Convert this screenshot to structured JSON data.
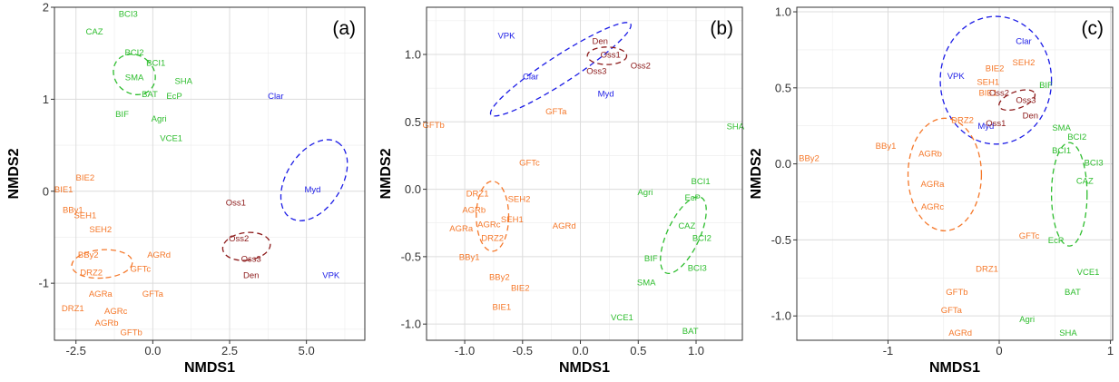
{
  "colors": {
    "orange": "#f5782a",
    "green": "#2ebd2e",
    "blue": "#1c1ce6",
    "darkred": "#8c1a1a",
    "grid": "#dcdcdc",
    "panel": "#ffffff"
  },
  "chart_data": [
    {
      "type": "scatter",
      "tag": "(a)",
      "xlabel": "NMDS1",
      "ylabel": "NMDS2",
      "xlim": [
        -3.2,
        6.9
      ],
      "ylim": [
        -1.62,
        2.0
      ],
      "xticks": [
        -2.5,
        0.0,
        2.5,
        5.0
      ],
      "xtick_labels": [
        "-2.5",
        "0.0",
        "2.5",
        "5.0"
      ],
      "yticks": [
        -1,
        0,
        1,
        2
      ],
      "ytick_labels": [
        "-1",
        "0",
        "1",
        "2"
      ],
      "grid": true,
      "points": [
        {
          "label": "BCI3",
          "x": -0.8,
          "y": 1.93,
          "color": "green"
        },
        {
          "label": "CAZ",
          "x": -1.9,
          "y": 1.74,
          "color": "green"
        },
        {
          "label": "BCI2",
          "x": -0.6,
          "y": 1.51,
          "color": "green"
        },
        {
          "label": "BCI1",
          "x": 0.1,
          "y": 1.4,
          "color": "green"
        },
        {
          "label": "SMA",
          "x": -0.6,
          "y": 1.24,
          "color": "green"
        },
        {
          "label": "SHA",
          "x": 1.0,
          "y": 1.2,
          "color": "green"
        },
        {
          "label": "BAT",
          "x": -0.1,
          "y": 1.06,
          "color": "green"
        },
        {
          "label": "EcP",
          "x": 0.7,
          "y": 1.04,
          "color": "green"
        },
        {
          "label": "BIF",
          "x": -1.0,
          "y": 0.84,
          "color": "green"
        },
        {
          "label": "Agri",
          "x": 0.2,
          "y": 0.79,
          "color": "green"
        },
        {
          "label": "VCE1",
          "x": 0.6,
          "y": 0.58,
          "color": "green"
        },
        {
          "label": "BIE2",
          "x": -2.2,
          "y": 0.15,
          "color": "orange"
        },
        {
          "label": "BIE1",
          "x": -2.9,
          "y": 0.02,
          "color": "orange"
        },
        {
          "label": "BBy1",
          "x": -2.6,
          "y": -0.2,
          "color": "orange"
        },
        {
          "label": "SEH1",
          "x": -2.2,
          "y": -0.26,
          "color": "orange"
        },
        {
          "label": "SEH2",
          "x": -1.7,
          "y": -0.41,
          "color": "orange"
        },
        {
          "label": "BBy2",
          "x": -2.1,
          "y": -0.69,
          "color": "orange"
        },
        {
          "label": "AGRd",
          "x": 0.2,
          "y": -0.69,
          "color": "orange"
        },
        {
          "label": "DRZ2",
          "x": -2.0,
          "y": -0.88,
          "color": "orange"
        },
        {
          "label": "GFTc",
          "x": -0.4,
          "y": -0.84,
          "color": "orange"
        },
        {
          "label": "AGRa",
          "x": -1.7,
          "y": -1.11,
          "color": "orange"
        },
        {
          "label": "GFTa",
          "x": 0.0,
          "y": -1.11,
          "color": "orange"
        },
        {
          "label": "DRZ1",
          "x": -2.6,
          "y": -1.27,
          "color": "orange"
        },
        {
          "label": "AGRc",
          "x": -1.2,
          "y": -1.3,
          "color": "orange"
        },
        {
          "label": "AGRb",
          "x": -1.5,
          "y": -1.43,
          "color": "orange"
        },
        {
          "label": "GFTb",
          "x": -0.7,
          "y": -1.53,
          "color": "orange"
        },
        {
          "label": "Clar",
          "x": 4.0,
          "y": 1.04,
          "color": "blue"
        },
        {
          "label": "Myd",
          "x": 5.2,
          "y": 0.02,
          "color": "blue"
        },
        {
          "label": "VPK",
          "x": 5.8,
          "y": -0.91,
          "color": "blue"
        },
        {
          "label": "Oss1",
          "x": 2.7,
          "y": -0.12,
          "color": "darkred"
        },
        {
          "label": "Oss2",
          "x": 2.8,
          "y": -0.51,
          "color": "darkred"
        },
        {
          "label": "Oss3",
          "x": 3.2,
          "y": -0.73,
          "color": "darkred"
        },
        {
          "label": "Den",
          "x": 3.2,
          "y": -0.91,
          "color": "darkred"
        }
      ],
      "ellipses": [
        {
          "color": "green",
          "cx": -0.6,
          "cy": 1.27,
          "rx": 0.62,
          "ry": 0.24,
          "angle": -52
        },
        {
          "color": "orange",
          "cx": -1.65,
          "cy": -0.79,
          "rx": 0.46,
          "ry": 0.33,
          "angle": 86
        },
        {
          "color": "blue",
          "cx": 5.25,
          "cy": 0.12,
          "rx": 1.45,
          "ry": 0.3,
          "angle": -58
        },
        {
          "color": "darkred",
          "cx": 3.05,
          "cy": -0.6,
          "rx": 0.45,
          "ry": 0.26,
          "angle": 83
        }
      ]
    },
    {
      "type": "scatter",
      "tag": "(b)",
      "xlabel": "NMDS1",
      "ylabel": "NMDS2",
      "xlim": [
        -1.33,
        1.4
      ],
      "ylim": [
        -1.12,
        1.35
      ],
      "xticks": [
        -1.0,
        -0.5,
        0.0,
        0.5,
        1.0
      ],
      "xtick_labels": [
        "-1.0",
        "-0.5",
        "0.0",
        "0.5",
        "1.0"
      ],
      "yticks": [
        -1.0,
        -0.5,
        0.0,
        0.5,
        1.0
      ],
      "ytick_labels": [
        "-1.0",
        "-0.5",
        "0.0",
        "0.5",
        "1.0"
      ],
      "grid": true,
      "points": [
        {
          "label": "VPK",
          "x": -0.64,
          "y": 1.14,
          "color": "blue"
        },
        {
          "label": "Clar",
          "x": -0.43,
          "y": 0.84,
          "color": "blue"
        },
        {
          "label": "Myd",
          "x": 0.22,
          "y": 0.71,
          "color": "blue"
        },
        {
          "label": "Den",
          "x": 0.17,
          "y": 1.1,
          "color": "darkred"
        },
        {
          "label": "Oss1",
          "x": 0.26,
          "y": 1.0,
          "color": "darkred"
        },
        {
          "label": "Oss3",
          "x": 0.14,
          "y": 0.88,
          "color": "darkred"
        },
        {
          "label": "Oss2",
          "x": 0.52,
          "y": 0.92,
          "color": "darkred"
        },
        {
          "label": "GFTa",
          "x": -0.21,
          "y": 0.58,
          "color": "orange"
        },
        {
          "label": "GFTb",
          "x": -1.27,
          "y": 0.48,
          "color": "orange"
        },
        {
          "label": "GFTc",
          "x": -0.44,
          "y": 0.2,
          "color": "orange"
        },
        {
          "label": "DRZ1",
          "x": -0.89,
          "y": -0.03,
          "color": "orange"
        },
        {
          "label": "SEH2",
          "x": -0.53,
          "y": -0.07,
          "color": "orange"
        },
        {
          "label": "AGRb",
          "x": -0.92,
          "y": -0.15,
          "color": "orange"
        },
        {
          "label": "SEH1",
          "x": -0.59,
          "y": -0.22,
          "color": "orange"
        },
        {
          "label": "AGRc",
          "x": -0.79,
          "y": -0.26,
          "color": "orange"
        },
        {
          "label": "AGRa",
          "x": -1.03,
          "y": -0.29,
          "color": "orange"
        },
        {
          "label": "AGRd",
          "x": -0.14,
          "y": -0.27,
          "color": "orange"
        },
        {
          "label": "DRZ2",
          "x": -0.76,
          "y": -0.36,
          "color": "orange"
        },
        {
          "label": "BBy1",
          "x": -0.96,
          "y": -0.5,
          "color": "orange"
        },
        {
          "label": "BBy2",
          "x": -0.7,
          "y": -0.65,
          "color": "orange"
        },
        {
          "label": "BIE2",
          "x": -0.52,
          "y": -0.73,
          "color": "orange"
        },
        {
          "label": "BIE1",
          "x": -0.68,
          "y": -0.87,
          "color": "orange"
        },
        {
          "label": "SHA",
          "x": 1.34,
          "y": 0.47,
          "color": "green"
        },
        {
          "label": "BCI1",
          "x": 1.04,
          "y": 0.06,
          "color": "green"
        },
        {
          "label": "Agri",
          "x": 0.56,
          "y": -0.02,
          "color": "green"
        },
        {
          "label": "EcP",
          "x": 0.97,
          "y": -0.06,
          "color": "green"
        },
        {
          "label": "CAZ",
          "x": 0.92,
          "y": -0.27,
          "color": "green"
        },
        {
          "label": "BCI2",
          "x": 1.05,
          "y": -0.36,
          "color": "green"
        },
        {
          "label": "BIF",
          "x": 0.61,
          "y": -0.51,
          "color": "green"
        },
        {
          "label": "BCI3",
          "x": 1.01,
          "y": -0.58,
          "color": "green"
        },
        {
          "label": "SMA",
          "x": 0.57,
          "y": -0.69,
          "color": "green"
        },
        {
          "label": "VCE1",
          "x": 0.36,
          "y": -0.95,
          "color": "green"
        },
        {
          "label": "BAT",
          "x": 0.95,
          "y": -1.05,
          "color": "green"
        }
      ],
      "ellipses": [
        {
          "color": "blue",
          "cx": -0.17,
          "cy": 0.89,
          "rx": 0.72,
          "ry": 0.1,
          "angle": -33
        },
        {
          "color": "darkred",
          "cx": 0.23,
          "cy": 0.99,
          "rx": 0.17,
          "ry": 0.065,
          "angle": 0
        },
        {
          "color": "orange",
          "cx": -0.76,
          "cy": -0.2,
          "rx": 0.14,
          "ry": 0.26,
          "angle": 0
        },
        {
          "color": "green",
          "cx": 0.89,
          "cy": -0.34,
          "rx": 0.36,
          "ry": 0.12,
          "angle": -65
        }
      ]
    },
    {
      "type": "scatter",
      "tag": "(c)",
      "xlabel": "NMDS1",
      "ylabel": "NMDS2",
      "xlim": [
        -1.82,
        1.02
      ],
      "ylim": [
        -1.16,
        1.03
      ],
      "xticks": [
        -1,
        0,
        1
      ],
      "xtick_labels": [
        "-1",
        "0",
        "1"
      ],
      "yticks": [
        -1.0,
        -0.5,
        0.0,
        0.5,
        1.0
      ],
      "ytick_labels": [
        "-1.0",
        "-0.5",
        "0.0",
        "0.5",
        "1.0"
      ],
      "grid": true,
      "points": [
        {
          "label": "Clar",
          "x": 0.22,
          "y": 0.81,
          "color": "blue"
        },
        {
          "label": "VPK",
          "x": -0.39,
          "y": 0.58,
          "color": "blue"
        },
        {
          "label": "Myd",
          "x": -0.12,
          "y": 0.25,
          "color": "blue"
        },
        {
          "label": "SEH2",
          "x": 0.22,
          "y": 0.67,
          "color": "orange"
        },
        {
          "label": "BIE2",
          "x": -0.04,
          "y": 0.63,
          "color": "orange"
        },
        {
          "label": "SEH1",
          "x": -0.1,
          "y": 0.54,
          "color": "orange"
        },
        {
          "label": "BIE1",
          "x": -0.1,
          "y": 0.47,
          "color": "orange"
        },
        {
          "label": "DRZ2",
          "x": -0.33,
          "y": 0.29,
          "color": "orange"
        },
        {
          "label": "BBy1",
          "x": -1.02,
          "y": 0.12,
          "color": "orange"
        },
        {
          "label": "BBy2",
          "x": -1.71,
          "y": 0.04,
          "color": "orange"
        },
        {
          "label": "AGRb",
          "x": -0.62,
          "y": 0.07,
          "color": "orange"
        },
        {
          "label": "AGRa",
          "x": -0.6,
          "y": -0.13,
          "color": "orange"
        },
        {
          "label": "AGRc",
          "x": -0.6,
          "y": -0.28,
          "color": "orange"
        },
        {
          "label": "GFTc",
          "x": 0.27,
          "y": -0.47,
          "color": "orange"
        },
        {
          "label": "DRZ1",
          "x": -0.11,
          "y": -0.69,
          "color": "orange"
        },
        {
          "label": "GFTb",
          "x": -0.38,
          "y": -0.84,
          "color": "orange"
        },
        {
          "label": "GFTa",
          "x": -0.43,
          "y": -0.96,
          "color": "orange"
        },
        {
          "label": "AGRd",
          "x": -0.35,
          "y": -1.11,
          "color": "orange"
        },
        {
          "label": "Oss2",
          "x": 0.0,
          "y": 0.47,
          "color": "darkred"
        },
        {
          "label": "Oss3",
          "x": 0.24,
          "y": 0.42,
          "color": "darkred"
        },
        {
          "label": "Den",
          "x": 0.28,
          "y": 0.32,
          "color": "darkred"
        },
        {
          "label": "Oss1",
          "x": -0.03,
          "y": 0.27,
          "color": "darkred"
        },
        {
          "label": "BIF",
          "x": 0.42,
          "y": 0.52,
          "color": "green"
        },
        {
          "label": "SMA",
          "x": 0.56,
          "y": 0.24,
          "color": "green"
        },
        {
          "label": "BCI2",
          "x": 0.7,
          "y": 0.18,
          "color": "green"
        },
        {
          "label": "BCI1",
          "x": 0.56,
          "y": 0.09,
          "color": "green"
        },
        {
          "label": "BCI3",
          "x": 0.85,
          "y": 0.01,
          "color": "green"
        },
        {
          "label": "CAZ",
          "x": 0.77,
          "y": -0.11,
          "color": "green"
        },
        {
          "label": "EcP",
          "x": 0.51,
          "y": -0.5,
          "color": "green"
        },
        {
          "label": "VCE1",
          "x": 0.8,
          "y": -0.71,
          "color": "green"
        },
        {
          "label": "BAT",
          "x": 0.66,
          "y": -0.84,
          "color": "green"
        },
        {
          "label": "Agri",
          "x": 0.25,
          "y": -1.02,
          "color": "green"
        },
        {
          "label": "SHA",
          "x": 0.62,
          "y": -1.11,
          "color": "green"
        }
      ],
      "ellipses": [
        {
          "color": "blue",
          "cx": -0.03,
          "cy": 0.55,
          "rx": 0.5,
          "ry": 0.42,
          "angle": 0
        },
        {
          "color": "orange",
          "cx": -0.49,
          "cy": -0.07,
          "rx": 0.33,
          "ry": 0.37,
          "angle": 0
        },
        {
          "color": "green",
          "cx": 0.63,
          "cy": -0.2,
          "rx": 0.16,
          "ry": 0.34,
          "angle": 0
        },
        {
          "color": "darkred",
          "cx": 0.16,
          "cy": 0.42,
          "rx": 0.17,
          "ry": 0.055,
          "angle": -20
        }
      ]
    }
  ]
}
